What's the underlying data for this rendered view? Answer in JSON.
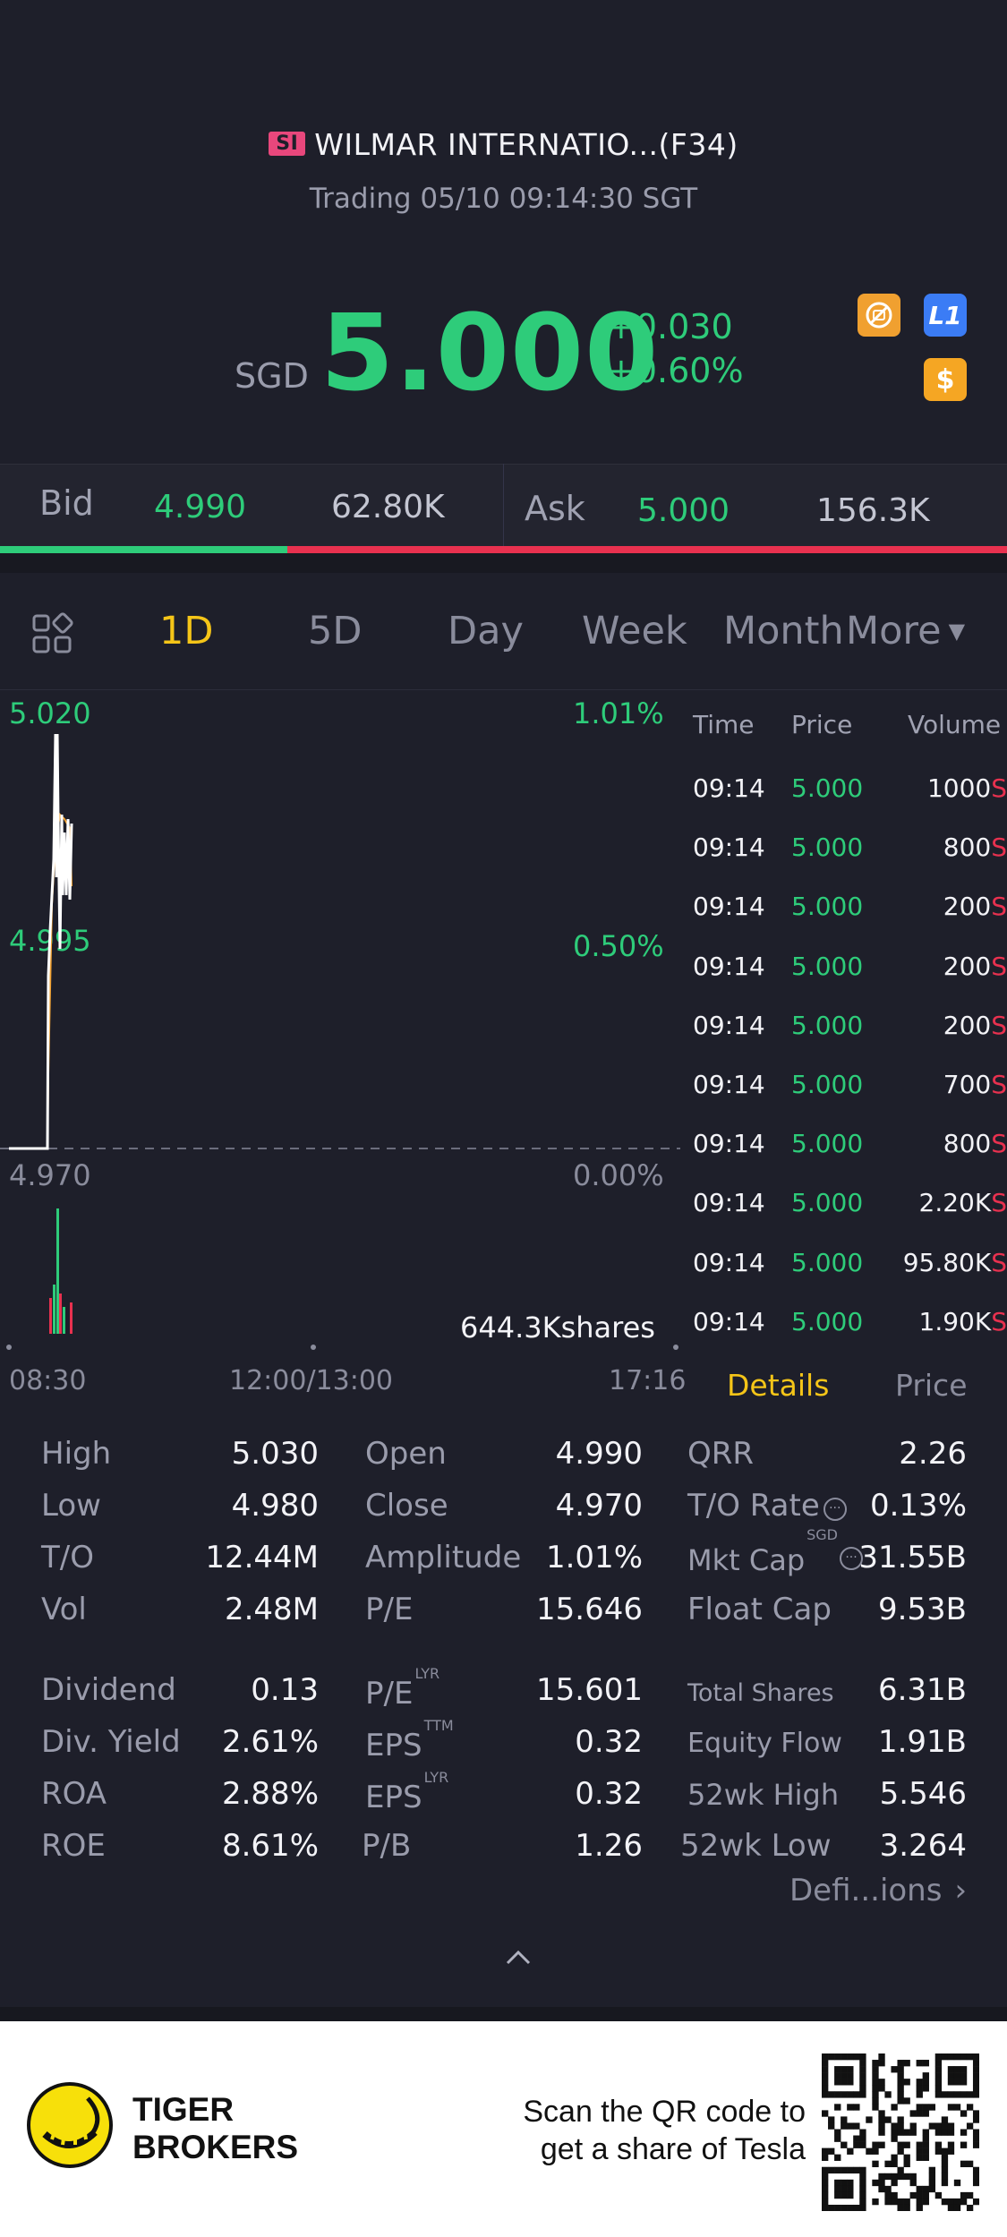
{
  "header": {
    "market_badge": "SI",
    "title": "WILMAR INTERNATIO...(F34)",
    "status": "Trading 05/10 09:14:30 SGT",
    "currency": "SGD",
    "price": "5.000",
    "change": "+0.030",
    "change_pct": "+0.60%",
    "level_badge": "L1",
    "dollar_badge": "$"
  },
  "bidask": {
    "bid_label": "Bid",
    "bid_price": "4.990",
    "bid_size": "62.80K",
    "ask_label": "Ask",
    "ask_price": "5.000",
    "ask_size": "156.3K",
    "bid_ratio": 0.285
  },
  "tabs": {
    "items": [
      "1D",
      "5D",
      "Day",
      "Week",
      "Month",
      "More"
    ],
    "active": "1D"
  },
  "chart": {
    "y_high": "5.020",
    "y_mid": "4.995",
    "y_low": "4.970",
    "pct_high": "1.01%",
    "pct_mid": "0.50%",
    "pct_low": "0.00%",
    "volume_label": "644.3Kshares",
    "x_start": "08:30",
    "x_mid": "12:00/13:00",
    "x_end": "17:16"
  },
  "ticks": {
    "headers": [
      "Time",
      "Price",
      "Volume"
    ],
    "rows": [
      {
        "time": "09:14",
        "price": "5.000",
        "volume": "1000",
        "side": "S"
      },
      {
        "time": "09:14",
        "price": "5.000",
        "volume": "800",
        "side": "S"
      },
      {
        "time": "09:14",
        "price": "5.000",
        "volume": "200",
        "side": "S"
      },
      {
        "time": "09:14",
        "price": "5.000",
        "volume": "200",
        "side": "S"
      },
      {
        "time": "09:14",
        "price": "5.000",
        "volume": "200",
        "side": "S"
      },
      {
        "time": "09:14",
        "price": "5.000",
        "volume": "700",
        "side": "S"
      },
      {
        "time": "09:14",
        "price": "5.000",
        "volume": "800",
        "side": "S"
      },
      {
        "time": "09:14",
        "price": "5.000",
        "volume": "2.20K",
        "side": "S"
      },
      {
        "time": "09:14",
        "price": "5.000",
        "volume": "95.80K",
        "side": "S"
      },
      {
        "time": "09:14",
        "price": "5.000",
        "volume": "1.90K",
        "side": "S"
      }
    ],
    "tab_details": "Details",
    "tab_price": "Price"
  },
  "stats": {
    "high_l": "High",
    "high_v": "5.030",
    "low_l": "Low",
    "low_v": "4.980",
    "to_l": "T/O",
    "to_v": "12.44M",
    "vol_l": "Vol",
    "vol_v": "2.48M",
    "open_l": "Open",
    "open_v": "4.990",
    "close_l": "Close",
    "close_v": "4.970",
    "amp_l": "Amplitude",
    "amp_v": "1.01%",
    "pe_l": "P/E",
    "pe_v": "15.646",
    "qrr_l": "QRR",
    "qrr_v": "2.26",
    "torate_l": "T/O Rate",
    "torate_v": "0.13%",
    "mktcap_l": "Mkt Cap",
    "mktcap_sup": "SGD",
    "mktcap_v": "31.55B",
    "floatcap_l": "Float Cap",
    "floatcap_v": "9.53B",
    "div_l": "Dividend",
    "div_v": "0.13",
    "divy_l": "Div. Yield",
    "divy_v": "2.61%",
    "roa_l": "ROA",
    "roa_v": "2.88%",
    "roe_l": "ROE",
    "roe_v": "8.61%",
    "pelyr_l": "P/E",
    "pelyr_sup": "LYR",
    "pelyr_v": "15.601",
    "epsttm_l": "EPS",
    "epsttm_sup": "TTM",
    "epsttm_v": "0.32",
    "epslyr_l": "EPS",
    "epslyr_sup": "LYR",
    "epslyr_v": "0.32",
    "pb_l": "P/B",
    "pb_v": "1.26",
    "total_l": "Total Shares",
    "total_v": "6.31B",
    "equity_l": "Equity Flow",
    "equity_v": "1.91B",
    "wkhigh_l": "52wk High",
    "wkhigh_v": "5.546",
    "wklow_l": "52wk Low",
    "wklow_v": "3.264",
    "definitions": "Defi...ions"
  },
  "footer": {
    "brand_line1": "TIGER",
    "brand_line2": "BROKERS",
    "promo_line1": "Scan the QR code to",
    "promo_line2": "get a share of Tesla"
  },
  "colors": {
    "up": "#2ecc7a",
    "down": "#e8314f",
    "accent": "#f5c518",
    "background": "#1e1f2a"
  }
}
